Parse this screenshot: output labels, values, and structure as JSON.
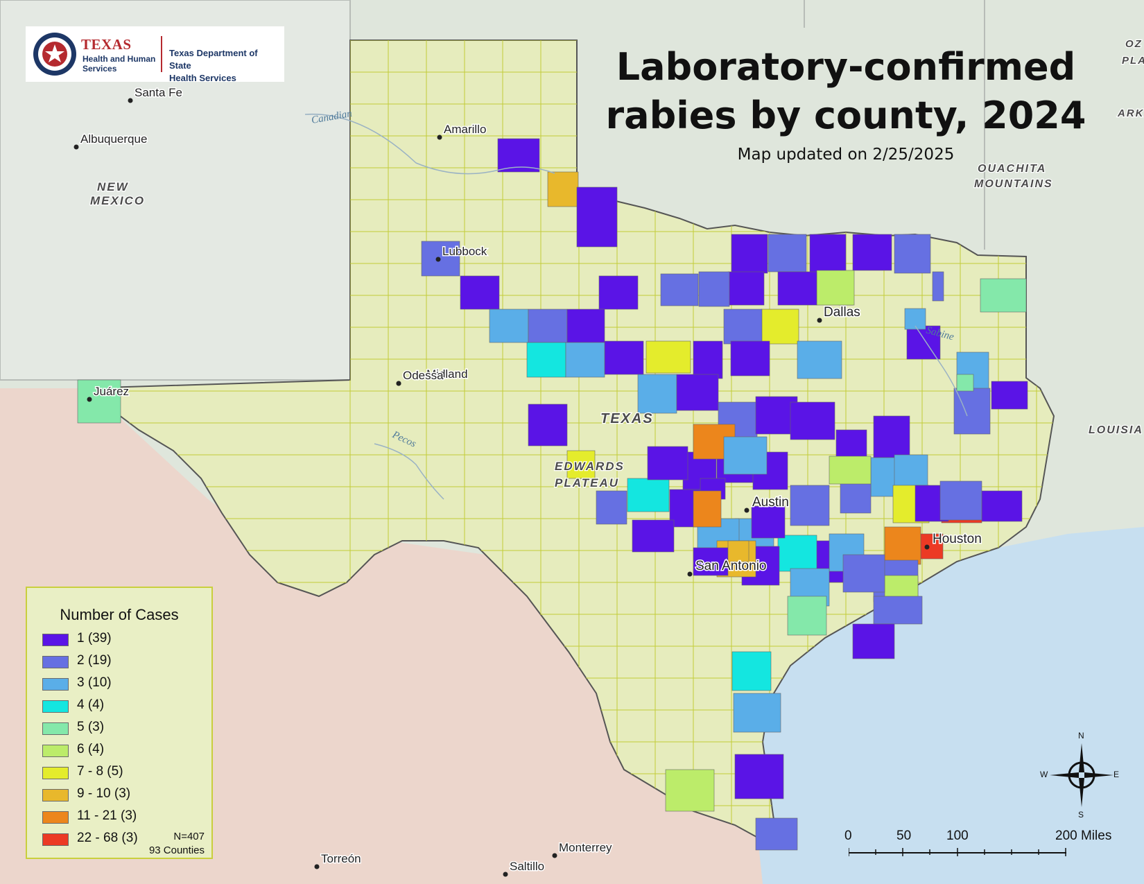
{
  "map": {
    "title_line1": "Laboratory-confirmed",
    "title_line2": "rabies by county, 2024",
    "subtitle": "Map updated on 2/25/2025",
    "logo": {
      "brand": "TEXAS",
      "brand_sub1": "Health and Human",
      "brand_sub2": "Services",
      "dept_line1": "Texas Department of State",
      "dept_line2": "Health Services"
    },
    "places": [
      {
        "name": "Santa Fe"
      },
      {
        "name": "Albuquerque"
      },
      {
        "name": "Amarillo"
      },
      {
        "name": "Lubbock"
      },
      {
        "name": "Midland"
      },
      {
        "name": "Odessa"
      },
      {
        "name": "Juárez"
      },
      {
        "name": "Dallas"
      },
      {
        "name": "Austin"
      },
      {
        "name": "San Antonio"
      },
      {
        "name": "Houston"
      },
      {
        "name": "Torreón"
      },
      {
        "name": "Monterrey"
      },
      {
        "name": "Saltillo"
      }
    ],
    "regions": [
      {
        "name": "NEW"
      },
      {
        "name": "MEXICO"
      },
      {
        "name": "TEXAS"
      },
      {
        "name": "EDWARDS"
      },
      {
        "name": "PLATEAU"
      },
      {
        "name": "OUACHITA"
      },
      {
        "name": "MOUNTAINS"
      },
      {
        "name": "LOUISIA"
      },
      {
        "name": "OZ"
      },
      {
        "name": "PLA"
      },
      {
        "name": "ARK"
      }
    ],
    "rivers": [
      {
        "name": "Canadian"
      },
      {
        "name": "Pecos"
      },
      {
        "name": "Sabine"
      }
    ],
    "colors": {
      "land": "#e3e8d0",
      "mexico": "#ecd6cc",
      "water": "#cbe2ee",
      "texas": "#e6ecbd",
      "county_line": "#c2cc38"
    }
  },
  "legend": {
    "title": "Number of Cases",
    "items": [
      {
        "label": "1 (39)",
        "color": "#5a14e6"
      },
      {
        "label": "2 (19)",
        "color": "#6670e2"
      },
      {
        "label": "3 (10)",
        "color": "#5aaee8"
      },
      {
        "label": "4 (4)",
        "color": "#14e6e0"
      },
      {
        "label": "5 (3)",
        "color": "#84e8aa"
      },
      {
        "label": "6 (4)",
        "color": "#bcec6a"
      },
      {
        "label": "7 - 8 (5)",
        "color": "#e4ec2c"
      },
      {
        "label": "9 - 10 (3)",
        "color": "#e8b82c"
      },
      {
        "label": "11 - 21 (3)",
        "color": "#ec861c"
      },
      {
        "label": "22 - 68 (3)",
        "color": "#ec3a24"
      }
    ],
    "n_label": "N=407",
    "counties_label": "93 Counties"
  },
  "scale_bar": {
    "labels": [
      "0",
      "50",
      "100",
      "200 Miles"
    ]
  },
  "compass": {
    "n": "N",
    "s": "S",
    "e": "E",
    "w": "W"
  },
  "counties": [
    {
      "bin": 4
    },
    {
      "bin": 0
    },
    {
      "bin": 7
    },
    {
      "bin": 0
    },
    {
      "bin": 0
    },
    {
      "bin": 1
    },
    {
      "bin": 0
    },
    {
      "bin": 0
    },
    {
      "bin": 1
    },
    {
      "bin": 0
    },
    {
      "bin": 1
    },
    {
      "bin": 4
    },
    {
      "bin": 0
    },
    {
      "bin": 1
    },
    {
      "bin": 1
    },
    {
      "bin": 0
    },
    {
      "bin": 1
    },
    {
      "bin": 0
    },
    {
      "bin": 5
    },
    {
      "bin": 0
    },
    {
      "bin": 0
    },
    {
      "bin": 2
    },
    {
      "bin": 6
    },
    {
      "bin": 1
    },
    {
      "bin": 2
    },
    {
      "bin": 1
    },
    {
      "bin": 0
    },
    {
      "bin": 2
    },
    {
      "bin": 1
    },
    {
      "bin": 0
    },
    {
      "bin": 6
    },
    {
      "bin": 0
    },
    {
      "bin": 0
    },
    {
      "bin": 4
    },
    {
      "bin": 0
    },
    {
      "bin": 2
    },
    {
      "bin": 3
    },
    {
      "bin": 2
    },
    {
      "bin": 2
    },
    {
      "bin": 0
    },
    {
      "bin": 1
    },
    {
      "bin": 0
    },
    {
      "bin": 0
    },
    {
      "bin": 0
    },
    {
      "bin": 0
    },
    {
      "bin": 0
    },
    {
      "bin": 6
    },
    {
      "bin": 0
    },
    {
      "bin": 0
    },
    {
      "bin": 0
    },
    {
      "bin": 3
    },
    {
      "bin": 1
    },
    {
      "bin": 2
    },
    {
      "bin": 1
    },
    {
      "bin": 2
    },
    {
      "bin": 9
    },
    {
      "bin": 0
    },
    {
      "bin": 0
    },
    {
      "bin": 0
    },
    {
      "bin": 0
    },
    {
      "bin": 8
    },
    {
      "bin": 2
    },
    {
      "bin": 6
    },
    {
      "bin": 9
    },
    {
      "bin": 8
    },
    {
      "bin": 5
    },
    {
      "bin": 2
    },
    {
      "bin": 2
    },
    {
      "bin": 0
    },
    {
      "bin": 1
    },
    {
      "bin": 1
    },
    {
      "bin": 8
    },
    {
      "bin": 1
    },
    {
      "bin": 0
    },
    {
      "bin": 2
    },
    {
      "bin": 3
    },
    {
      "bin": 0
    },
    {
      "bin": 0
    },
    {
      "bin": 7
    },
    {
      "bin": 0
    },
    {
      "bin": 5
    },
    {
      "bin": 0
    },
    {
      "bin": 7
    },
    {
      "bin": 1
    },
    {
      "bin": 2
    },
    {
      "bin": 1
    },
    {
      "bin": 0
    },
    {
      "bin": 3
    },
    {
      "bin": 2
    },
    {
      "bin": 4
    },
    {
      "bin": 0
    },
    {
      "bin": 5
    },
    {
      "bin": 1
    }
  ]
}
